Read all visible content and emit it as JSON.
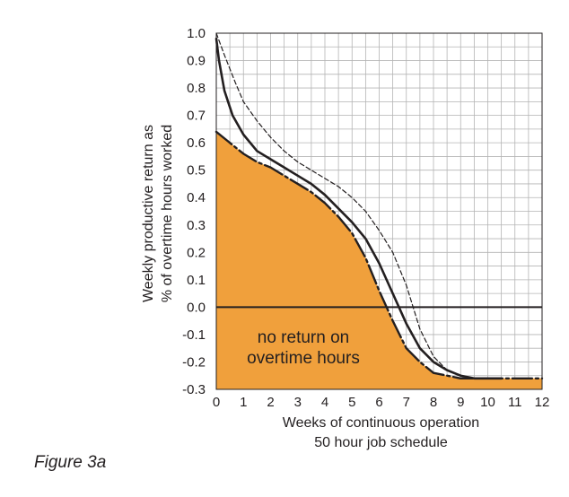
{
  "caption": "Figure 3a",
  "chart_data": {
    "type": "line",
    "xlabel_lines": [
      "Weeks of continuous operation",
      "50 hour job schedule"
    ],
    "ylabel_lines": [
      "Weekly productive return as",
      "% of overtime hours worked"
    ],
    "xlim": [
      0,
      12
    ],
    "ylim": [
      -0.3,
      1.0
    ],
    "x_ticks": [
      0,
      1,
      2,
      3,
      4,
      5,
      6,
      7,
      8,
      9,
      10,
      11,
      12
    ],
    "x_tick_labels": [
      "0",
      "1",
      "2",
      "3",
      "4",
      "5",
      "6",
      "7",
      "8",
      "9",
      "10",
      "11",
      "12"
    ],
    "y_ticks": [
      1.0,
      0.9,
      0.8,
      0.7,
      0.6,
      0.5,
      0.4,
      0.3,
      0.2,
      0.1,
      0.0,
      -0.1,
      -0.2,
      -0.3
    ],
    "y_tick_labels": [
      "1.0",
      "0.9",
      "0.8",
      "0.7",
      "0.6",
      "0.5",
      "0.4",
      "0.3",
      "0.2",
      "0.1",
      "0.0",
      "-0.1",
      "-0.2",
      "-0.3"
    ],
    "grid": true,
    "annotation_lines": [
      "no return on",
      "overtime hours"
    ],
    "colors": {
      "fill": "#f0a03c",
      "line": "#231f20",
      "grid": "#b4b4b4"
    },
    "series": [
      {
        "style": "dashed",
        "x": [
          0,
          0.3,
          0.7,
          1,
          1.5,
          2,
          2.5,
          3,
          3.5,
          4,
          4.5,
          5,
          5.5,
          6,
          6.5,
          7,
          7.5,
          8,
          8.5,
          9,
          9.5,
          10,
          10.5
        ],
        "y": [
          1.0,
          0.92,
          0.82,
          0.75,
          0.68,
          0.62,
          0.57,
          0.53,
          0.5,
          0.47,
          0.44,
          0.4,
          0.35,
          0.28,
          0.2,
          0.08,
          -0.08,
          -0.18,
          -0.23,
          -0.25,
          -0.26,
          -0.26,
          -0.26
        ]
      },
      {
        "style": "solid",
        "x": [
          0,
          0.1,
          0.3,
          0.6,
          1,
          1.5,
          2,
          2.5,
          3,
          3.5,
          4,
          4.5,
          5,
          5.5,
          6,
          6.5,
          7,
          7.5,
          8,
          8.5,
          9,
          9.5,
          10,
          10.5
        ],
        "y": [
          0.98,
          0.9,
          0.79,
          0.7,
          0.63,
          0.57,
          0.54,
          0.51,
          0.48,
          0.45,
          0.41,
          0.36,
          0.31,
          0.25,
          0.16,
          0.05,
          -0.06,
          -0.15,
          -0.2,
          -0.23,
          -0.25,
          -0.26,
          -0.26,
          -0.26
        ]
      },
      {
        "style": "dash-dot",
        "x": [
          0,
          0.5,
          1,
          1.5,
          2,
          2.5,
          3,
          3.5,
          4,
          4.5,
          5,
          5.5,
          6,
          6.5,
          7,
          7.5,
          8,
          8.5,
          9,
          10,
          11,
          12
        ],
        "y": [
          0.64,
          0.6,
          0.56,
          0.53,
          0.51,
          0.48,
          0.45,
          0.42,
          0.38,
          0.33,
          0.27,
          0.18,
          0.06,
          -0.05,
          -0.15,
          -0.2,
          -0.24,
          -0.25,
          -0.26,
          -0.26,
          -0.26,
          -0.26
        ]
      }
    ]
  }
}
